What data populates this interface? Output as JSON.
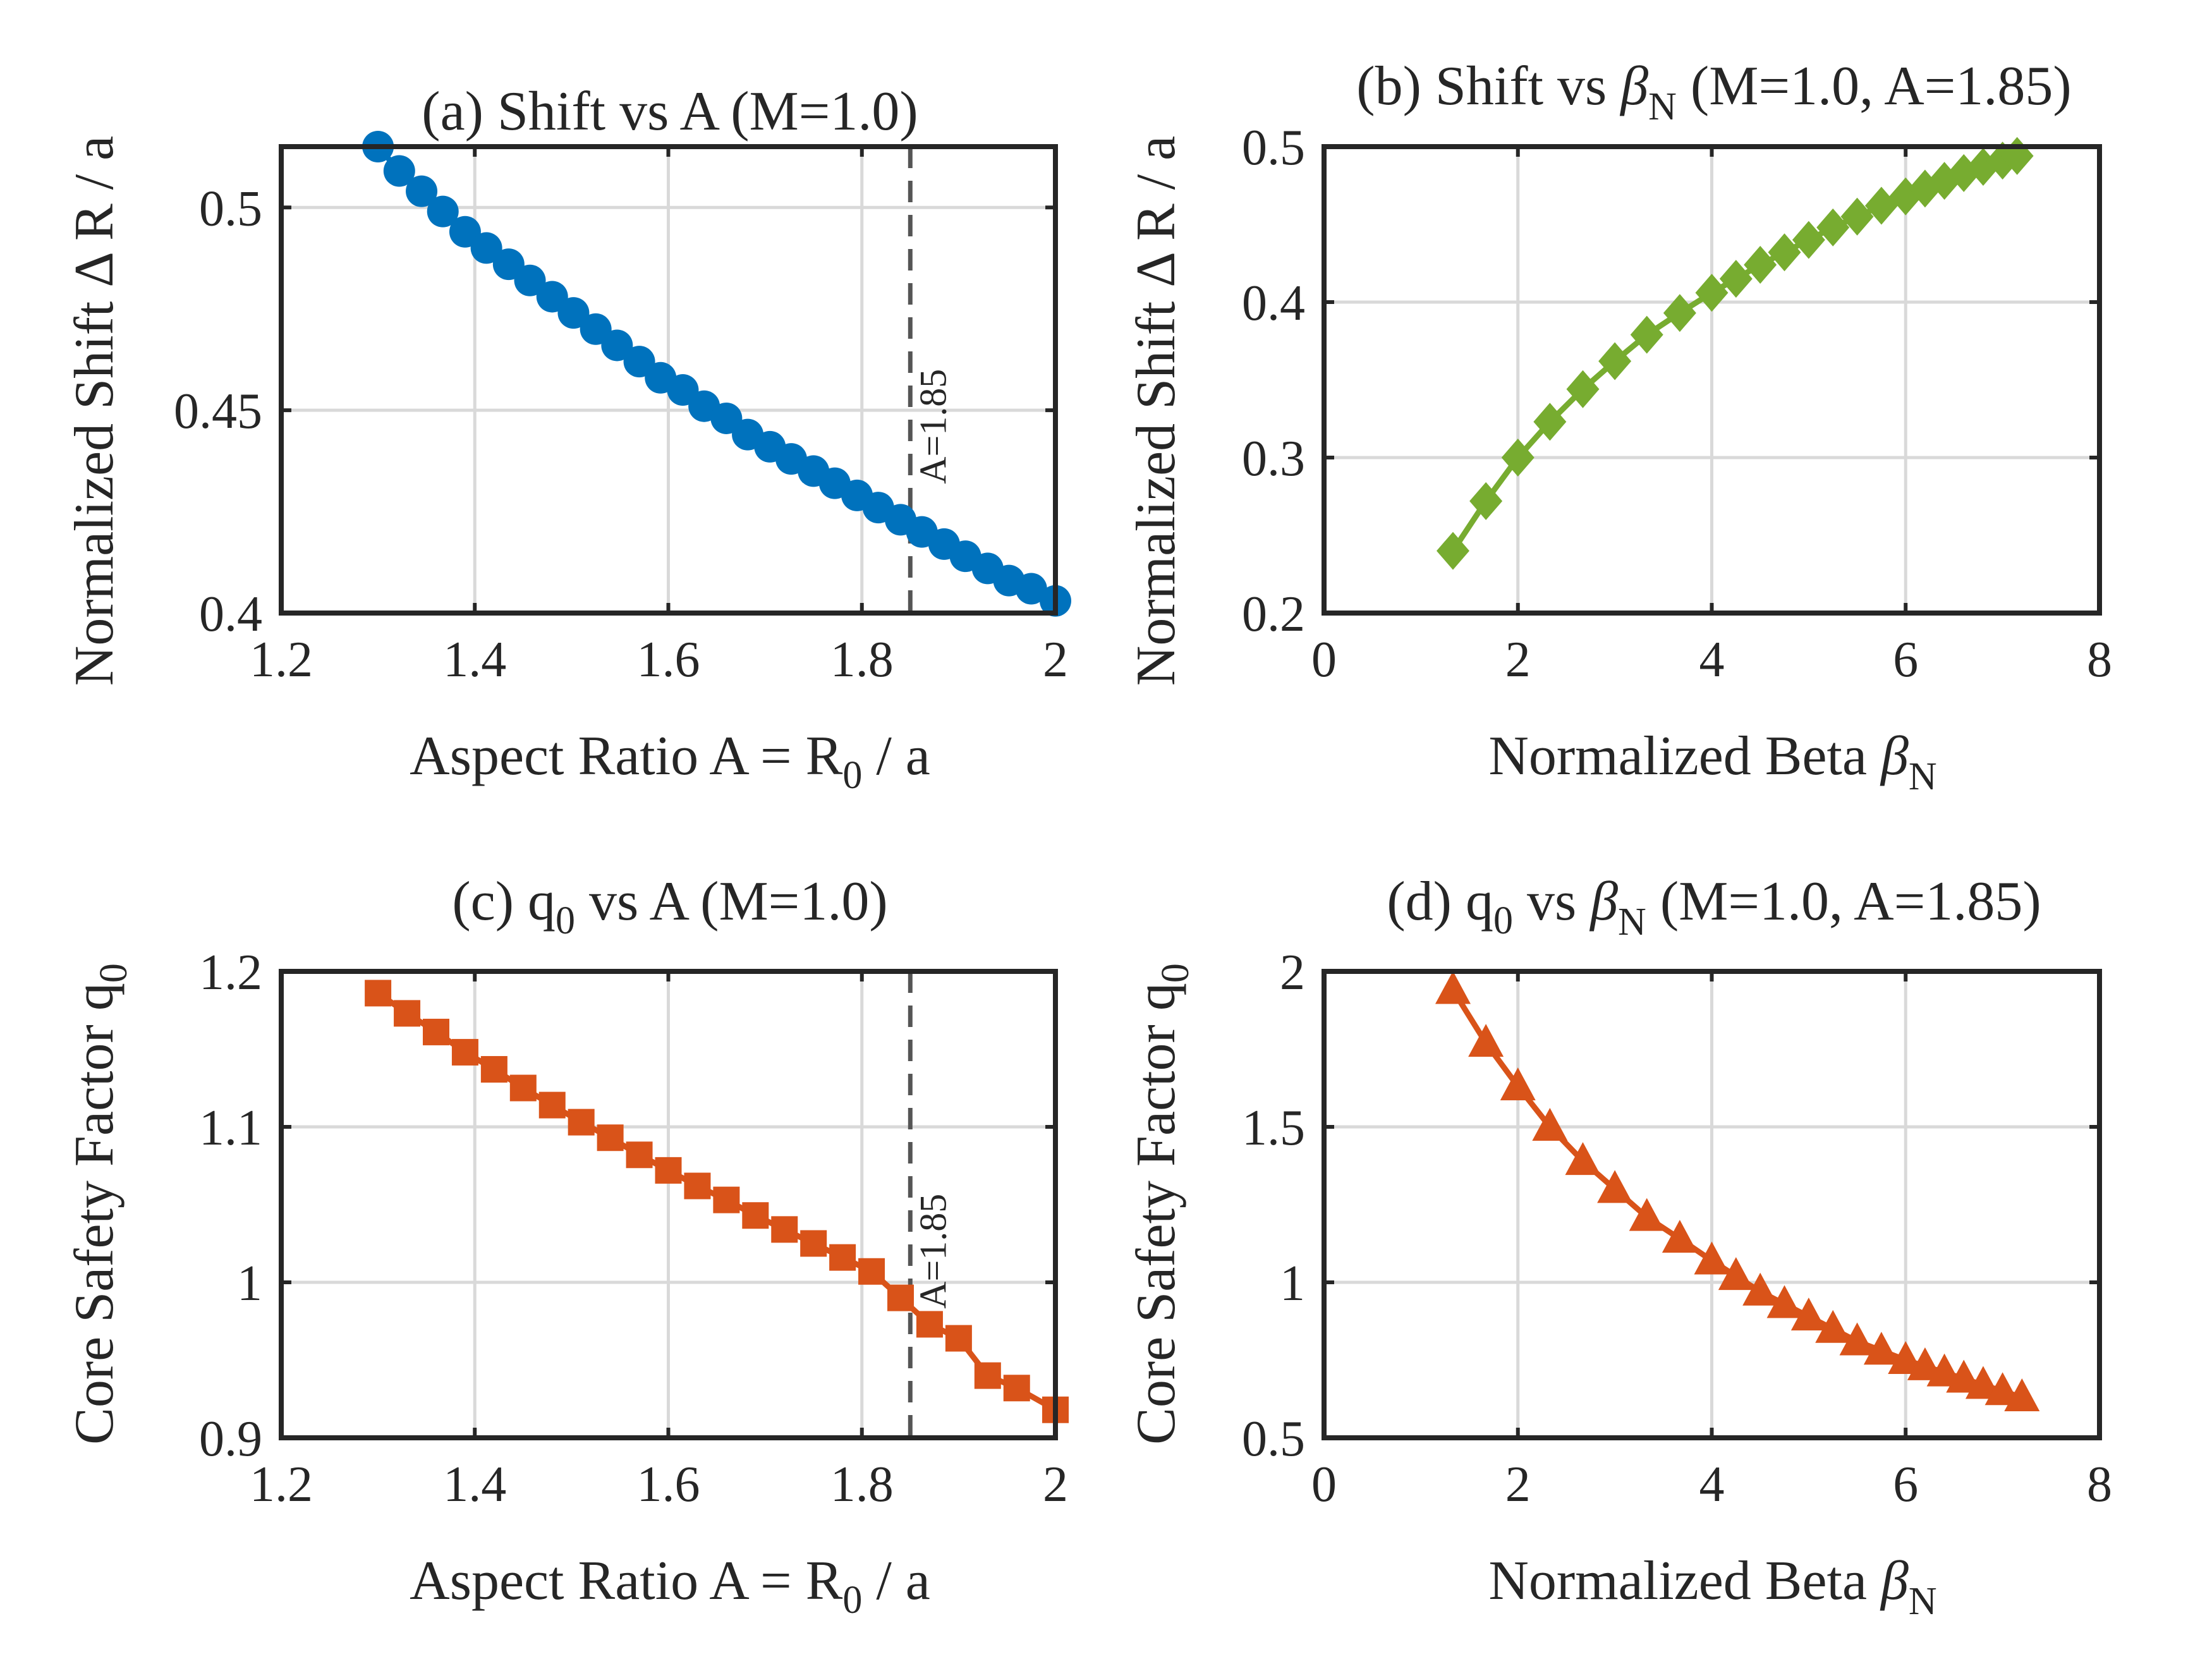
{
  "figure": {
    "colors": {
      "blue": "#0072BD",
      "green": "#77AC30",
      "orange": "#D95319",
      "axis": "#262626",
      "grid": "#D9D9D9",
      "marker_line": "#555555"
    }
  },
  "chart_data": [
    {
      "id": "a",
      "type": "line",
      "marker": "circle",
      "color": "#0072BD",
      "title": "(a) Shift vs A (M=1.0)",
      "xlabel": "Aspect Ratio A = R₀ / a",
      "ylabel": "Normalized Shift Δ R / a",
      "xlim": [
        1.2,
        2.0
      ],
      "ylim": [
        0.4,
        0.515
      ],
      "xticks": [
        1.2,
        1.4,
        1.6,
        1.8,
        2.0
      ],
      "xtick_labels": [
        "1.2",
        "1.4",
        "1.6",
        "1.8",
        "2"
      ],
      "yticks": [
        0.4,
        0.45,
        0.5
      ],
      "ytick_labels": [
        "0.4",
        "0.45",
        "0.5"
      ],
      "grid": true,
      "vline": {
        "x": 1.85,
        "label": "A=1.85"
      },
      "series": [
        {
          "name": "Shift",
          "x": [
            1.3,
            1.322,
            1.345,
            1.367,
            1.39,
            1.412,
            1.435,
            1.457,
            1.48,
            1.502,
            1.525,
            1.547,
            1.57,
            1.592,
            1.615,
            1.637,
            1.66,
            1.682,
            1.705,
            1.727,
            1.75,
            1.772,
            1.795,
            1.817,
            1.84,
            1.862,
            1.885,
            1.907,
            1.93,
            1.952,
            1.975,
            2.0
          ],
          "y": [
            0.515,
            0.509,
            0.504,
            0.499,
            0.494,
            0.49,
            0.486,
            0.482,
            0.478,
            0.474,
            0.47,
            0.466,
            0.462,
            0.458,
            0.455,
            0.451,
            0.448,
            0.444,
            0.441,
            0.438,
            0.435,
            0.432,
            0.429,
            0.426,
            0.423,
            0.42,
            0.417,
            0.414,
            0.411,
            0.408,
            0.406,
            0.403
          ]
        }
      ]
    },
    {
      "id": "b",
      "type": "line",
      "marker": "diamond",
      "color": "#77AC30",
      "title": "(b) Shift vs βN (M=1.0, A=1.85)",
      "xlabel": "Normalized Beta βN",
      "ylabel": "Normalized Shift Δ R / a",
      "xlim": [
        0,
        8
      ],
      "ylim": [
        0.2,
        0.5
      ],
      "xticks": [
        0,
        2,
        4,
        6,
        8
      ],
      "xtick_labels": [
        "0",
        "2",
        "4",
        "6",
        "8"
      ],
      "yticks": [
        0.2,
        0.3,
        0.4,
        0.5
      ],
      "ytick_labels": [
        "0.2",
        "0.3",
        "0.4",
        "0.5"
      ],
      "grid": true,
      "series": [
        {
          "name": "Shift",
          "x": [
            1.33,
            1.67,
            2.0,
            2.33,
            2.67,
            3.0,
            3.33,
            3.67,
            4.0,
            4.25,
            4.5,
            4.75,
            5.0,
            5.25,
            5.5,
            5.75,
            6.0,
            6.2,
            6.4,
            6.6,
            6.8,
            7.0,
            7.15
          ],
          "y": [
            0.24,
            0.272,
            0.3,
            0.323,
            0.344,
            0.362,
            0.379,
            0.393,
            0.406,
            0.415,
            0.424,
            0.432,
            0.44,
            0.448,
            0.455,
            0.462,
            0.468,
            0.473,
            0.478,
            0.483,
            0.487,
            0.491,
            0.494
          ]
        }
      ]
    },
    {
      "id": "c",
      "type": "line",
      "marker": "square",
      "color": "#D95319",
      "title": "(c) q₀ vs A (M=1.0)",
      "xlabel": "Aspect Ratio A = R₀ / a",
      "ylabel": "Core Safety Factor q₀",
      "xlim": [
        1.2,
        2.0
      ],
      "ylim": [
        0.9,
        1.2
      ],
      "xticks": [
        1.2,
        1.4,
        1.6,
        1.8,
        2.0
      ],
      "xtick_labels": [
        "1.2",
        "1.4",
        "1.6",
        "1.8",
        "2"
      ],
      "yticks": [
        0.9,
        1.0,
        1.1,
        1.2
      ],
      "ytick_labels": [
        "0.9",
        "1",
        "1.1",
        "1.2"
      ],
      "grid": true,
      "vline": {
        "x": 1.85,
        "label": "A=1.85"
      },
      "series": [
        {
          "name": "q0",
          "x": [
            1.3,
            1.33,
            1.36,
            1.39,
            1.42,
            1.45,
            1.48,
            1.51,
            1.54,
            1.57,
            1.6,
            1.63,
            1.66,
            1.69,
            1.72,
            1.75,
            1.78,
            1.81,
            1.84,
            1.87,
            1.9,
            1.93,
            1.96,
            2.0
          ],
          "y": [
            1.186,
            1.173,
            1.161,
            1.148,
            1.137,
            1.125,
            1.114,
            1.103,
            1.093,
            1.082,
            1.072,
            1.062,
            1.053,
            1.043,
            1.034,
            1.025,
            1.016,
            1.007,
            0.99,
            0.973,
            0.964,
            0.94,
            0.932,
            0.918
          ]
        }
      ]
    },
    {
      "id": "d",
      "type": "line",
      "marker": "triangle",
      "color": "#D95319",
      "title": "(d) q₀ vs βN (M=1.0, A=1.85)",
      "xlabel": "Normalized Beta βN",
      "ylabel": "Core Safety Factor q₀",
      "xlim": [
        0,
        8
      ],
      "ylim": [
        0.5,
        2.0
      ],
      "xticks": [
        0,
        2,
        4,
        6,
        8
      ],
      "xtick_labels": [
        "0",
        "2",
        "4",
        "6",
        "8"
      ],
      "yticks": [
        0.5,
        1.0,
        1.5,
        2.0
      ],
      "ytick_labels": [
        "0.5",
        "1",
        "1.5",
        "2"
      ],
      "grid": true,
      "series": [
        {
          "name": "q0",
          "x": [
            1.33,
            1.67,
            2.0,
            2.33,
            2.67,
            3.0,
            3.33,
            3.67,
            4.0,
            4.25,
            4.5,
            4.75,
            5.0,
            5.25,
            5.5,
            5.75,
            6.0,
            6.2,
            6.4,
            6.6,
            6.8,
            7.0,
            7.2
          ],
          "y": [
            1.94,
            1.77,
            1.63,
            1.5,
            1.39,
            1.3,
            1.21,
            1.14,
            1.07,
            1.02,
            0.97,
            0.93,
            0.89,
            0.85,
            0.81,
            0.78,
            0.75,
            0.73,
            0.71,
            0.69,
            0.67,
            0.65,
            0.63
          ]
        }
      ]
    }
  ]
}
